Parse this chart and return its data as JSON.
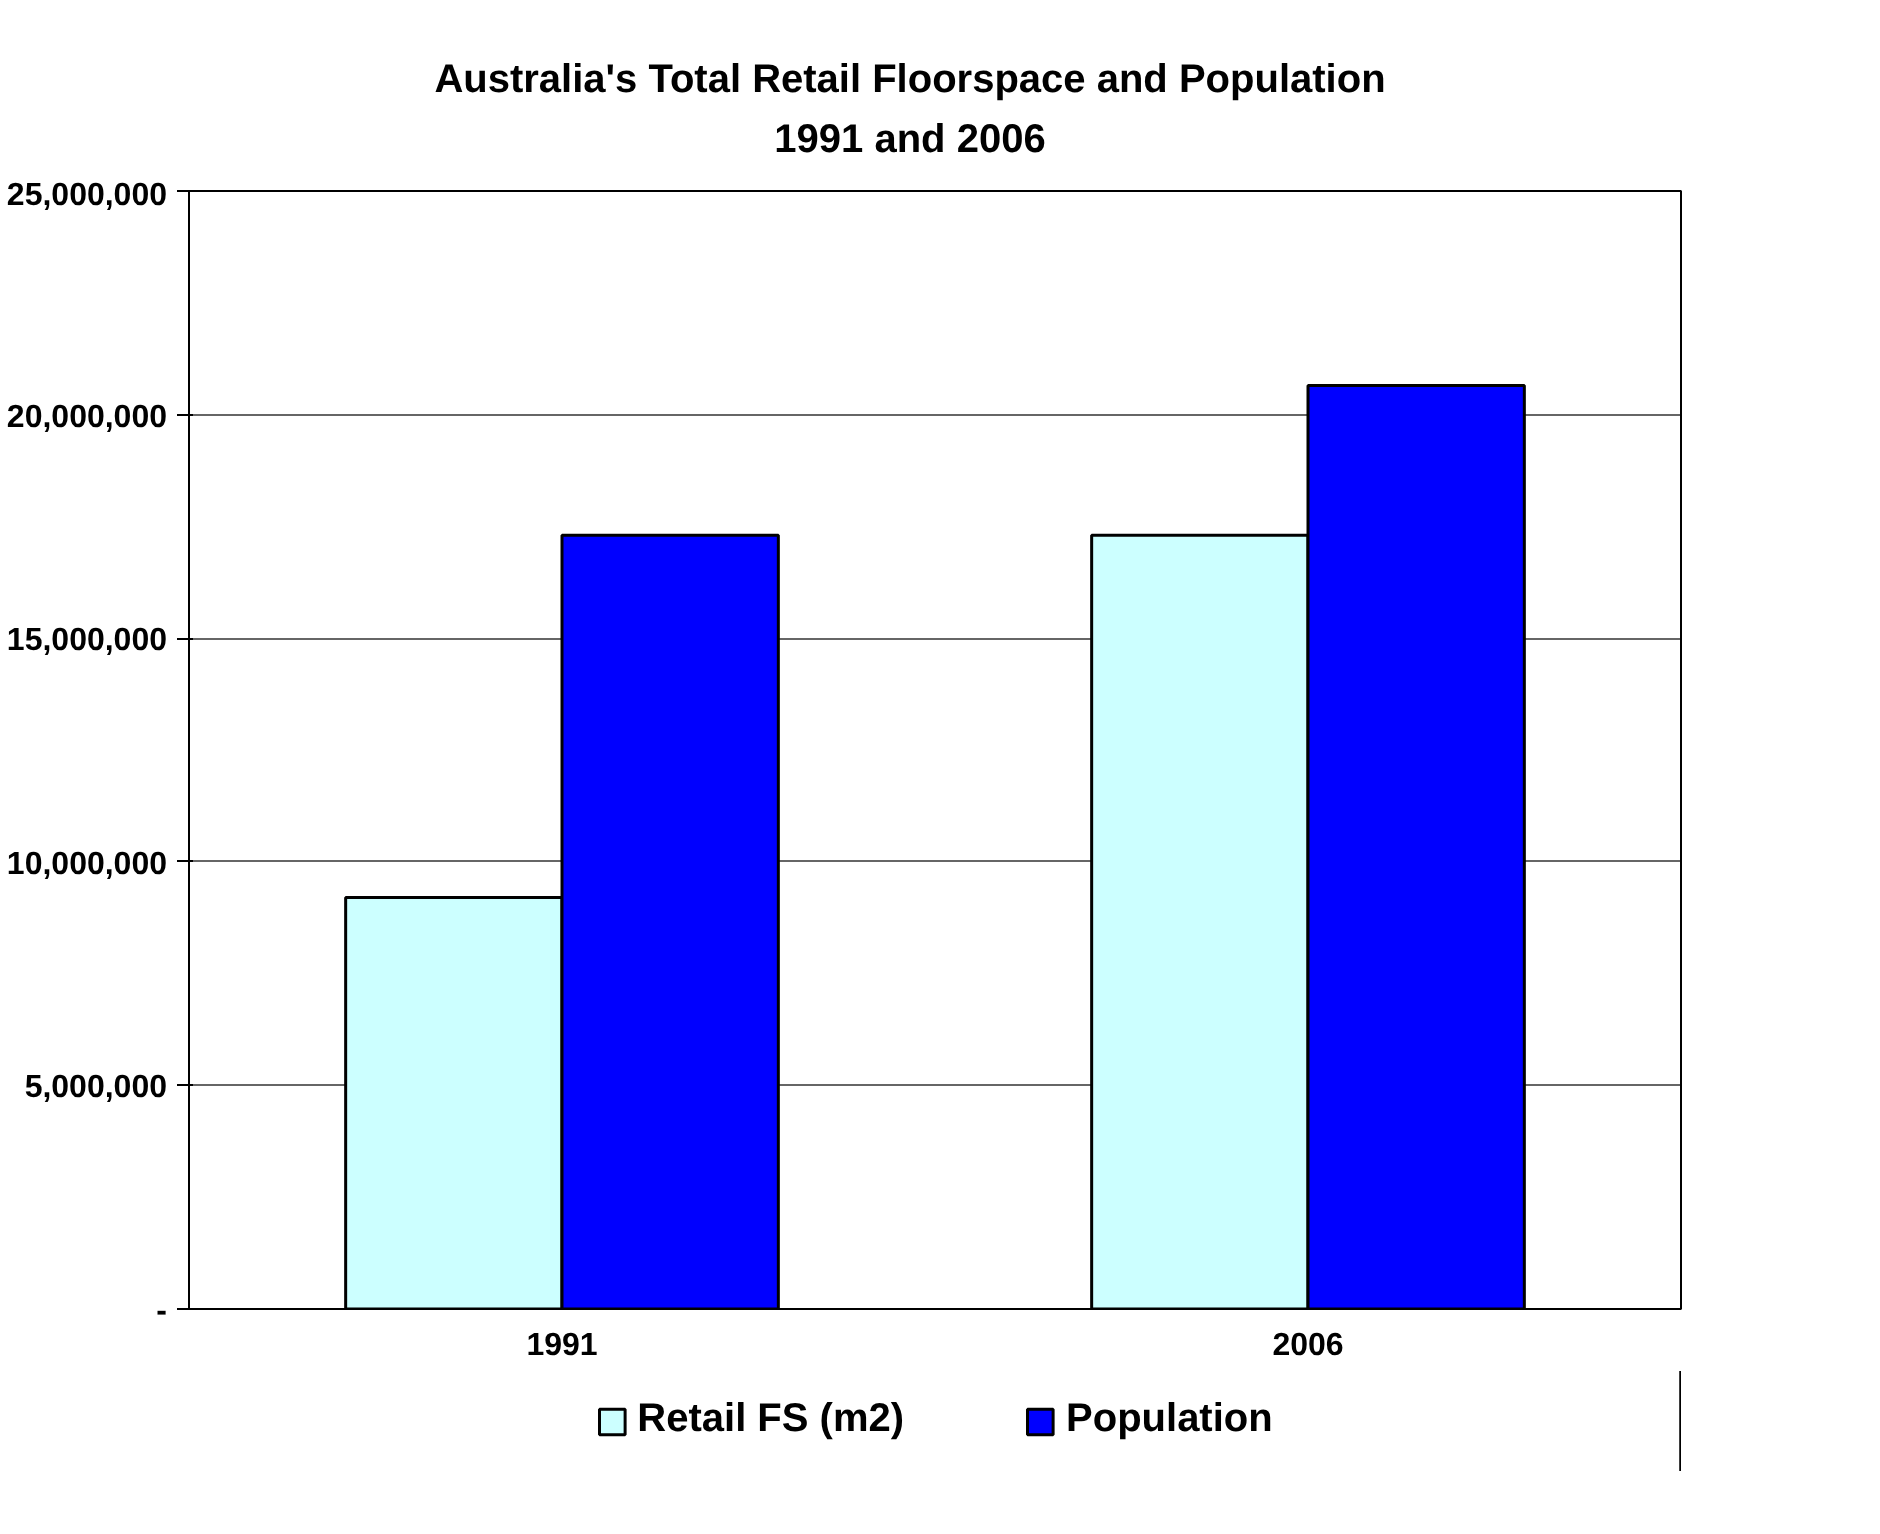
{
  "chart_data": {
    "type": "bar",
    "title": "Australia's Total Retail Floorspace and Population\n1991 and 2006",
    "categories": [
      "1991",
      "2006"
    ],
    "series": [
      {
        "name": "Retail FS (m2)",
        "color": "#ccffff",
        "values": [
          9200000,
          17300000
        ]
      },
      {
        "name": "Population",
        "color": "#0000ff",
        "values": [
          17300000,
          20650000
        ]
      }
    ],
    "ylim": [
      0,
      25000000
    ],
    "yticks": [
      {
        "value": 0,
        "label": "-"
      },
      {
        "value": 5000000,
        "label": "5,000,000"
      },
      {
        "value": 10000000,
        "label": "10,000,000"
      },
      {
        "value": 15000000,
        "label": "15,000,000"
      },
      {
        "value": 20000000,
        "label": "20,000,000"
      },
      {
        "value": 25000000,
        "label": "25,000,000"
      }
    ],
    "grid": "y",
    "legend": "bottom"
  }
}
